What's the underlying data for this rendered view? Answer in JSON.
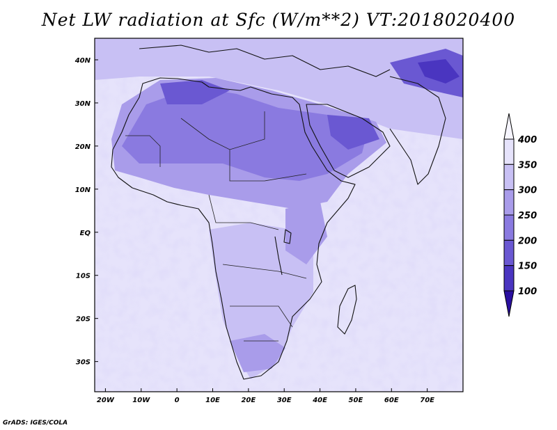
{
  "title": "Net LW radiation at Sfc (W/m**2) VT:2018020400",
  "credit": "GrADS: IGES/COLA",
  "map": {
    "lon_range": [
      -23,
      80
    ],
    "lat_range": [
      -37,
      45
    ],
    "x_ticks": [
      "20W",
      "10W",
      "0",
      "10E",
      "20E",
      "30E",
      "40E",
      "50E",
      "60E",
      "70E"
    ],
    "y_ticks": [
      "40N",
      "30N",
      "20N",
      "10N",
      "EQ",
      "10S",
      "20S",
      "30S"
    ]
  },
  "colorbar": {
    "levels": [
      "100",
      "150",
      "200",
      "250",
      "300",
      "350",
      "400"
    ],
    "colors": [
      "#2a0fa0",
      "#4a35c0",
      "#6a58d2",
      "#8a7ae0",
      "#a99cea",
      "#c8c0f4",
      "#e6e3fb"
    ]
  }
}
